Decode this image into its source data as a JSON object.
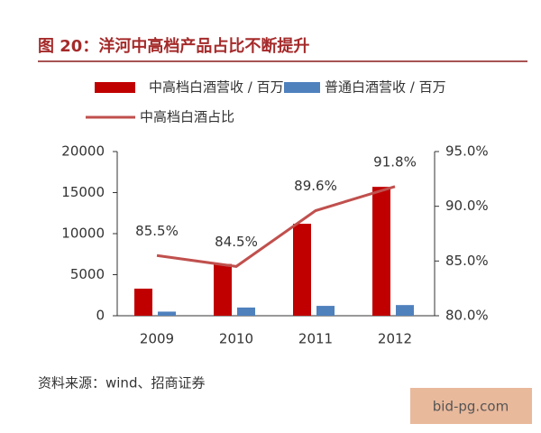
{
  "chart_data": {
    "type": "bar-line",
    "title": "图 20：洋河中高档产品占比不断提升",
    "categories": [
      "2009",
      "2010",
      "2011",
      "2012"
    ],
    "series": [
      {
        "name": "中高档白酒营收 / 百万",
        "type": "bar",
        "color": "#c00000",
        "values": [
          3300,
          6300,
          11200,
          15700
        ]
      },
      {
        "name": "普通白酒营收 / 百万",
        "type": "bar",
        "color": "#4f81bd",
        "values": [
          500,
          1000,
          1200,
          1300
        ]
      },
      {
        "name": "中高档白酒占比",
        "type": "line",
        "axis": "y2",
        "color": "#c0504d",
        "values": [
          85.5,
          84.5,
          89.6,
          91.8
        ],
        "value_labels": [
          "85.5%",
          "84.5%",
          "89.6%",
          "91.8%"
        ]
      }
    ],
    "ylim": [
      0,
      20000
    ],
    "yticks": [
      0,
      5000,
      10000,
      15000,
      20000
    ],
    "y2lim": [
      80,
      95
    ],
    "y2ticks": [
      {
        "value": 80,
        "label": "80.0%"
      },
      {
        "value": 85,
        "label": "85.0%"
      },
      {
        "value": 90,
        "label": "90.0%"
      },
      {
        "value": 95,
        "label": "95.0%"
      }
    ],
    "grid": false
  },
  "footer": {
    "source": "资料来源：wind、招商证券",
    "watermark": "bid-pg.com"
  }
}
